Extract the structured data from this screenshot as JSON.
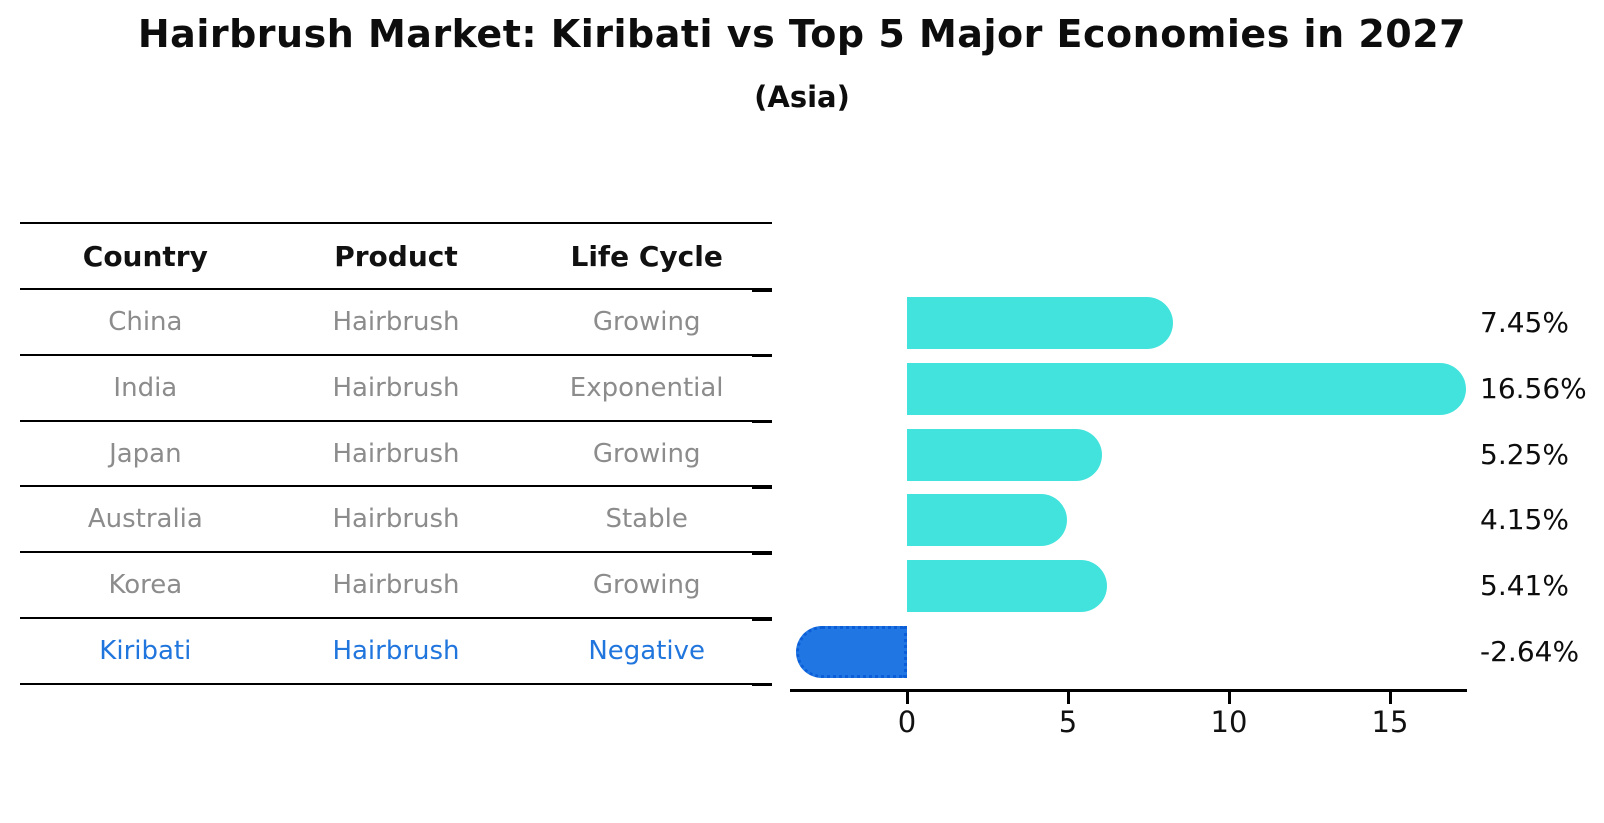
{
  "title": "Hairbrush Market: Kiribati vs Top 5 Major Economies in 2027",
  "subtitle": "(Asia)",
  "table": {
    "headers": [
      "Country",
      "Product",
      "Life Cycle"
    ]
  },
  "chart_data": {
    "type": "bar",
    "orientation": "horizontal",
    "title": "Hairbrush Market: Kiribati vs Top 5 Major Economies in 2027",
    "subtitle": "(Asia)",
    "categories": [
      "China",
      "India",
      "Japan",
      "Australia",
      "Korea",
      "Kiribati"
    ],
    "values": [
      7.45,
      16.56,
      5.25,
      4.15,
      5.41,
      -2.64
    ],
    "value_labels": [
      "7.45%",
      "16.56%",
      "5.25%",
      "4.15%",
      "5.41%",
      "-2.64%"
    ],
    "rows": [
      {
        "country": "China",
        "product": "Hairbrush",
        "life_cycle": "Growing",
        "value": 7.45,
        "label": "7.45%",
        "highlight": false
      },
      {
        "country": "India",
        "product": "Hairbrush",
        "life_cycle": "Exponential",
        "value": 16.56,
        "label": "16.56%",
        "highlight": false
      },
      {
        "country": "Japan",
        "product": "Hairbrush",
        "life_cycle": "Growing",
        "value": 5.25,
        "label": "5.25%",
        "highlight": false
      },
      {
        "country": "Australia",
        "product": "Hairbrush",
        "life_cycle": "Stable",
        "value": 4.15,
        "label": "4.15%",
        "highlight": false
      },
      {
        "country": "Korea",
        "product": "Hairbrush",
        "life_cycle": "Growing",
        "value": 5.41,
        "label": "5.41%",
        "highlight": false
      },
      {
        "country": "Kiribati",
        "product": "Hairbrush",
        "life_cycle": "Negative",
        "value": -2.64,
        "label": "-2.64%",
        "highlight": true
      }
    ],
    "xticks": [
      0,
      5,
      10,
      15
    ],
    "xlim": [
      -3.7,
      17.4
    ],
    "xlabel": "",
    "ylabel": "",
    "grid": false,
    "legend": false,
    "colors": {
      "positive_bar": "#42E3DD",
      "negative_bar": "#2077E4",
      "negative_bar_border": "#0B5ED7",
      "highlight_text": "#2176DE",
      "row_text": "#8c8c8c",
      "header_text": "#111111",
      "value_label_text": "#0d0d0d",
      "axis": "#000000",
      "tick_text": "#111111"
    }
  }
}
